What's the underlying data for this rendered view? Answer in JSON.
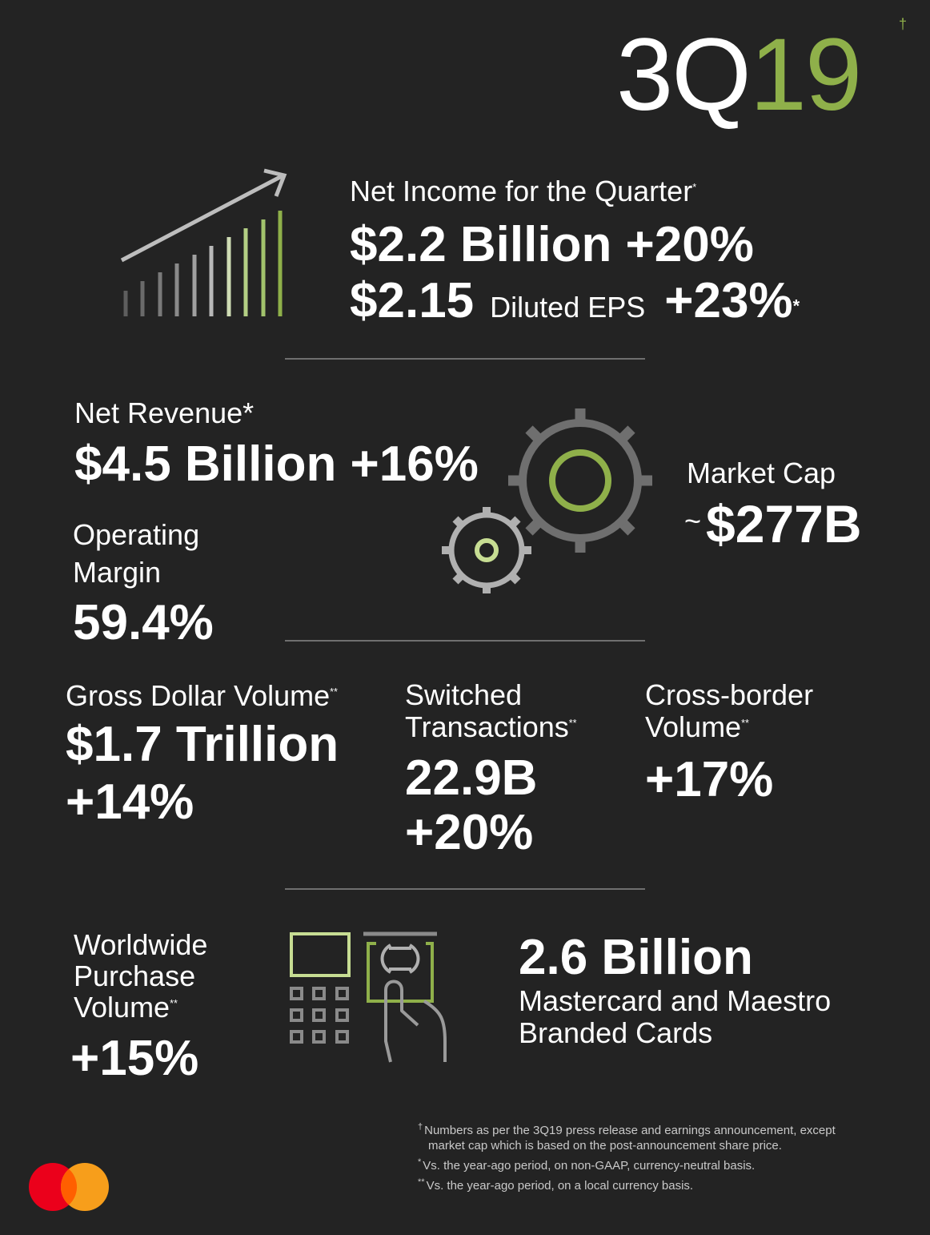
{
  "title": {
    "prefix": "3Q",
    "suffix": "19",
    "dagger": "†"
  },
  "net_income": {
    "label": "Net Income for the Quarter",
    "label_mark": "*",
    "value": "$2.2 Billion +20%",
    "eps_value": "$2.15",
    "eps_label": "Diluted EPS",
    "eps_change": "+23%",
    "eps_mark": "*"
  },
  "net_revenue": {
    "label": "Net Revenue*",
    "value": "$4.5 Billion +16%"
  },
  "operating_margin": {
    "label": "Operating Margin",
    "value": "59.4%"
  },
  "market_cap": {
    "label": "Market Cap",
    "tilde": "~",
    "value": "$277B"
  },
  "gross_dollar_volume": {
    "label": "Gross Dollar Volume",
    "mark": "**",
    "value": "$1.7 Trillion",
    "change": "+14%"
  },
  "switched_transactions": {
    "label_line1": "Switched",
    "label_line2": "Transactions",
    "mark": "**",
    "value": "22.9B",
    "change": "+20%"
  },
  "cross_border": {
    "label_line1": "Cross-border",
    "label_line2": "Volume",
    "mark": "**",
    "change": "+17%"
  },
  "worldwide_purchase": {
    "label_line1": "Worldwide",
    "label_line2": "Purchase",
    "label_line3": "Volume",
    "mark": "**",
    "change": "+15%"
  },
  "cards": {
    "value": "2.6 Billion",
    "label": "Mastercard and Maestro Branded Cards"
  },
  "footnotes": {
    "f1_mark": "†",
    "f1_line1": "Numbers as per the 3Q19 press release and earnings announcement, except",
    "f1_line2": "market cap which is based on the post-announcement share price.",
    "f2_mark": "*",
    "f2": "Vs. the year-ago period, on non-GAAP, currency-neutral basis.",
    "f3_mark": "**",
    "f3": "Vs. the year-ago period, on a local currency basis."
  },
  "colors": {
    "background": "#232323",
    "accent_green": "#8fb04a",
    "light_green": "#c7dd93",
    "gear_gray": "#6f6f6f",
    "mastercard_red": "#eb001b",
    "mastercard_orange": "#f79e1b"
  },
  "icons": [
    "growth-chart-icon",
    "gears-icon",
    "atm-card-icon",
    "mastercard-logo-icon"
  ]
}
